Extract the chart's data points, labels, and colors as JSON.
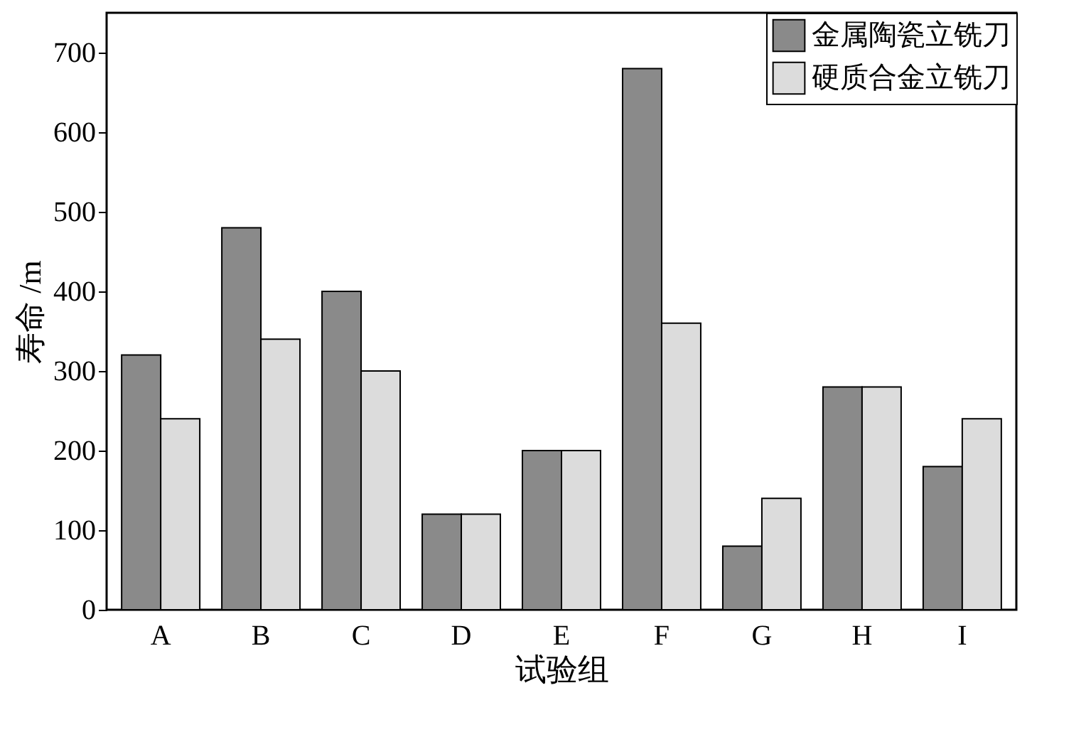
{
  "chart_data": {
    "type": "bar",
    "xlabel": "试验组",
    "ylabel": "寿命 /m",
    "categories": [
      "A",
      "B",
      "C",
      "D",
      "E",
      "F",
      "G",
      "H",
      "I"
    ],
    "series": [
      {
        "name": "金属陶瓷立铣刀",
        "color": "#8a8a8a",
        "values": [
          320,
          480,
          400,
          120,
          200,
          680,
          80,
          280,
          180
        ]
      },
      {
        "name": "硬质合金立铣刀",
        "color": "#dcdcdc",
        "values": [
          240,
          340,
          300,
          120,
          200,
          360,
          140,
          280,
          240
        ]
      }
    ],
    "ylim": [
      0,
      750
    ],
    "yticks": [
      0,
      100,
      200,
      300,
      400,
      500,
      600,
      700
    ],
    "grid": false,
    "legend": "top right"
  }
}
